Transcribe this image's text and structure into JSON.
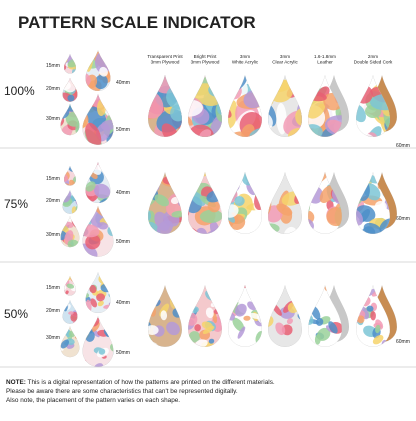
{
  "title": "PATTERN SCALE INDICATOR",
  "materials": [
    [
      "Transparent Print",
      "3mm Plywood"
    ],
    [
      "Bright Print",
      "3mm Plywood"
    ],
    [
      "3mm",
      "White Acrylic"
    ],
    [
      "3mm",
      "Clear Acrylic"
    ],
    [
      "1.6-1.8mm",
      "Leather"
    ],
    [
      "2mm",
      "Double Sided Cork"
    ]
  ],
  "rows": [
    {
      "scale": "100%",
      "sizes": [
        "15mm",
        "20mm",
        "30mm",
        "40mm",
        "50mm",
        "60mm"
      ]
    },
    {
      "scale": "75%",
      "sizes": [
        "15mm",
        "20mm",
        "30mm",
        "40mm",
        "50mm",
        "60mm"
      ]
    },
    {
      "scale": "50%",
      "sizes": [
        "15mm",
        "20mm",
        "30mm",
        "40mm",
        "50mm",
        "60mm"
      ]
    }
  ],
  "note": {
    "label": "NOTE:",
    "lines": [
      " This is a digital representation of how the patterns are printed on the different materials.",
      "Please be aware there are some characteristics that can't be represented digitally.",
      "Also note, the placement of the pattern varies on each shape."
    ]
  }
}
